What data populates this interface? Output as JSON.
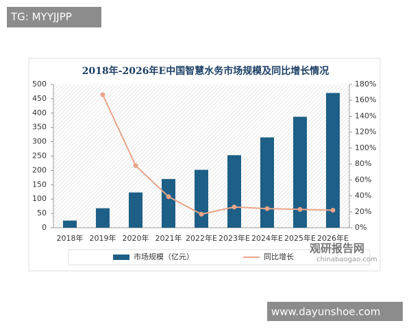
{
  "chart_data": {
    "type": "bar_line",
    "title": "2018年-2026年E中国智慧水务市场规模及同比增长情况",
    "categories": [
      "2018年",
      "2019年",
      "2020年",
      "2021年",
      "2022年E",
      "2023年E",
      "2024年E",
      "2025年E",
      "2026年E"
    ],
    "series": [
      {
        "name": "市场规模（亿元）",
        "type": "bar",
        "color": "#1d5f86",
        "values": [
          25,
          68,
          123,
          170,
          202,
          253,
          315,
          387,
          470
        ]
      },
      {
        "name": "同比增长",
        "type": "line",
        "axis": "y2",
        "color": "#e9a489",
        "values": [
          null,
          167,
          78,
          39,
          17,
          26,
          24,
          23,
          22
        ]
      }
    ],
    "ylim": [
      0,
      500
    ],
    "yticks": [
      0,
      50,
      100,
      150,
      200,
      250,
      300,
      350,
      400,
      450,
      500
    ],
    "y2lim": [
      0,
      180
    ],
    "y2ticks": [
      {
        "value": 0,
        "label": "0%"
      },
      {
        "value": 20,
        "label": "20%"
      },
      {
        "value": 40,
        "label": "40%"
      },
      {
        "value": 60,
        "label": "60%"
      },
      {
        "value": 80,
        "label": "80%"
      },
      {
        "value": 100,
        "label": "100%"
      },
      {
        "value": 120,
        "label": "120%"
      },
      {
        "value": 140,
        "label": "140%"
      },
      {
        "value": 160,
        "label": "160%"
      },
      {
        "value": 180,
        "label": "180%"
      }
    ],
    "legend": "bottom"
  },
  "watermarks": {
    "top_left": "TG: MYYJJPP",
    "logo": "观研报告网",
    "logo_url": "chinabaogao.com",
    "bottom_right": "www.dayunshoe.com"
  }
}
